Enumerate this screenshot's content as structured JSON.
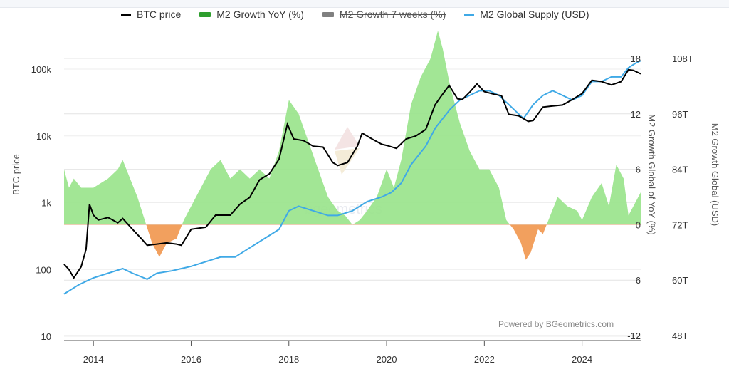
{
  "chart_data": {
    "type": "line",
    "legend": [
      {
        "label": "BTC price",
        "color": "#000000",
        "kind": "line",
        "hidden": false
      },
      {
        "label": "M2 Growth YoY (%)",
        "color": "#2e9e2e",
        "kind": "area",
        "hidden": false
      },
      {
        "label": "M2 Growth 7 weeks (%)",
        "color": "#808080",
        "kind": "area",
        "hidden": true
      },
      {
        "label": "M2 Global Supply (USD)",
        "color": "#3fa9e6",
        "kind": "line",
        "hidden": false
      }
    ],
    "legend_position": "top",
    "x_ticks": [
      "2014",
      "2016",
      "2018",
      "2020",
      "2022",
      "2024"
    ],
    "xlim": [
      2013.4,
      2025.2
    ],
    "y_left": {
      "label": "BTC price",
      "scale": "log",
      "ticks": [
        "10",
        "100",
        "1k",
        "10k",
        "100k"
      ],
      "range": [
        10,
        100000
      ]
    },
    "y_right1": {
      "label": "M2 Growth Global of YoY (%)",
      "ticks": [
        "-12",
        "-6",
        "0",
        "6",
        "12",
        "18"
      ],
      "range": [
        -12,
        18
      ]
    },
    "y_right2": {
      "label": "M2 Growth Global (USD)",
      "ticks": [
        "48T",
        "60T",
        "72T",
        "84T",
        "96T",
        "108T"
      ],
      "range": [
        48,
        108
      ]
    },
    "grid": true,
    "positive_fill": "#98e38a",
    "negative_fill": "#f2a05e",
    "series": [
      {
        "name": "BTC price",
        "axis": "left",
        "color": "#000000",
        "x": [
          2013.4,
          2013.5,
          2013.6,
          2013.75,
          2013.85,
          2013.92,
          2014.0,
          2014.1,
          2014.3,
          2014.5,
          2014.6,
          2014.8,
          2015.0,
          2015.1,
          2015.3,
          2015.5,
          2015.7,
          2015.8,
          2016.0,
          2016.3,
          2016.5,
          2016.8,
          2017.0,
          2017.2,
          2017.4,
          2017.6,
          2017.8,
          2017.97,
          2018.1,
          2018.3,
          2018.5,
          2018.7,
          2018.9,
          2019.0,
          2019.2,
          2019.4,
          2019.5,
          2019.7,
          2019.9,
          2020.0,
          2020.2,
          2020.4,
          2020.6,
          2020.8,
          2020.99,
          2021.1,
          2021.28,
          2021.45,
          2021.55,
          2021.7,
          2021.85,
          2022.0,
          2022.2,
          2022.35,
          2022.5,
          2022.7,
          2022.9,
          2023.0,
          2023.2,
          2023.4,
          2023.6,
          2023.8,
          2024.0,
          2024.2,
          2024.4,
          2024.6,
          2024.8,
          2024.95,
          2025.05,
          2025.2
        ],
        "values": [
          120,
          100,
          75,
          110,
          200,
          950,
          650,
          550,
          600,
          500,
          580,
          400,
          280,
          230,
          240,
          250,
          240,
          230,
          400,
          430,
          650,
          650,
          950,
          1200,
          2200,
          2700,
          4500,
          15000,
          9000,
          8500,
          7000,
          6800,
          4000,
          3600,
          4000,
          7000,
          11000,
          9000,
          7500,
          7200,
          6500,
          9000,
          10000,
          12500,
          29000,
          38000,
          57000,
          36000,
          35000,
          45000,
          60000,
          46000,
          42000,
          40000,
          21000,
          20000,
          16500,
          17000,
          27000,
          28000,
          29000,
          35000,
          43000,
          68000,
          65000,
          58000,
          65000,
          98000,
          96000,
          85000
        ]
      },
      {
        "name": "M2 Growth YoY (%)",
        "axis": "right1",
        "color": "#98e38a",
        "x": [
          2013.4,
          2013.5,
          2013.6,
          2013.75,
          2014.0,
          2014.3,
          2014.5,
          2014.6,
          2014.75,
          2014.9,
          2015.05,
          2015.2,
          2015.35,
          2015.5,
          2015.7,
          2015.85,
          2016.0,
          2016.2,
          2016.4,
          2016.6,
          2016.8,
          2017.0,
          2017.2,
          2017.4,
          2017.6,
          2017.8,
          2018.0,
          2018.2,
          2018.4,
          2018.6,
          2018.8,
          2019.0,
          2019.15,
          2019.3,
          2019.45,
          2019.6,
          2019.8,
          2020.0,
          2020.15,
          2020.3,
          2020.5,
          2020.7,
          2020.9,
          2021.05,
          2021.15,
          2021.3,
          2021.5,
          2021.7,
          2021.9,
          2022.1,
          2022.3,
          2022.45,
          2022.6,
          2022.75,
          2022.85,
          2022.95,
          2023.1,
          2023.2,
          2023.35,
          2023.5,
          2023.7,
          2023.9,
          2024.0,
          2024.2,
          2024.4,
          2024.55,
          2024.7,
          2024.85,
          2024.95,
          2025.05,
          2025.2
        ],
        "values": [
          6,
          4,
          5,
          4,
          4,
          5,
          6,
          7,
          5,
          3,
          0.5,
          -2,
          -3.5,
          -2,
          -1.5,
          0.5,
          2,
          4,
          6,
          7,
          5,
          6,
          5,
          6,
          5,
          8,
          13.5,
          12,
          9,
          6,
          3,
          1.5,
          1,
          0,
          0.5,
          1.5,
          3,
          6,
          4,
          7,
          13,
          16,
          18,
          21,
          19,
          15,
          11,
          8,
          6,
          6,
          4,
          0.5,
          -0.5,
          -2,
          -3.8,
          -3,
          -0.5,
          -1,
          1,
          3,
          2,
          1.5,
          0.5,
          3,
          4.5,
          2,
          6.5,
          5,
          1,
          2,
          3.5
        ]
      },
      {
        "name": "M2 Global Supply (USD)",
        "axis": "right2",
        "color": "#3fa9e6",
        "x": [
          2013.4,
          2013.7,
          2014.0,
          2014.3,
          2014.6,
          2014.8,
          2015.1,
          2015.3,
          2015.6,
          2016.0,
          2016.3,
          2016.6,
          2016.9,
          2017.2,
          2017.5,
          2017.8,
          2018.0,
          2018.2,
          2018.5,
          2018.8,
          2019.0,
          2019.3,
          2019.6,
          2019.9,
          2020.1,
          2020.3,
          2020.5,
          2020.8,
          2021.0,
          2021.3,
          2021.5,
          2021.7,
          2021.9,
          2022.1,
          2022.3,
          2022.5,
          2022.7,
          2022.8,
          2023.0,
          2023.2,
          2023.4,
          2023.6,
          2023.8,
          2024.0,
          2024.2,
          2024.4,
          2024.6,
          2024.8,
          2024.95,
          2025.1,
          2025.2
        ],
        "values": [
          57,
          59,
          60.5,
          61.5,
          62.5,
          61.5,
          60.2,
          61.5,
          62,
          63,
          64,
          65,
          65,
          67,
          69,
          71,
          75,
          76,
          75,
          74,
          74,
          75,
          77,
          78,
          79,
          81,
          85,
          89,
          93,
          97,
          99,
          100,
          101,
          101,
          100,
          98,
          96,
          95,
          98,
          100,
          101,
          100,
          99,
          100,
          103,
          103,
          104,
          104,
          106,
          107,
          107.5
        ]
      }
    ]
  },
  "axis_titles": {
    "left": "BTC price",
    "right1": "M2 Growth Global of YoY (%)",
    "right2": "M2 Growth Global (USD)"
  },
  "credit": "Powered by BGeometrics.com",
  "watermark": "bgeometrics"
}
